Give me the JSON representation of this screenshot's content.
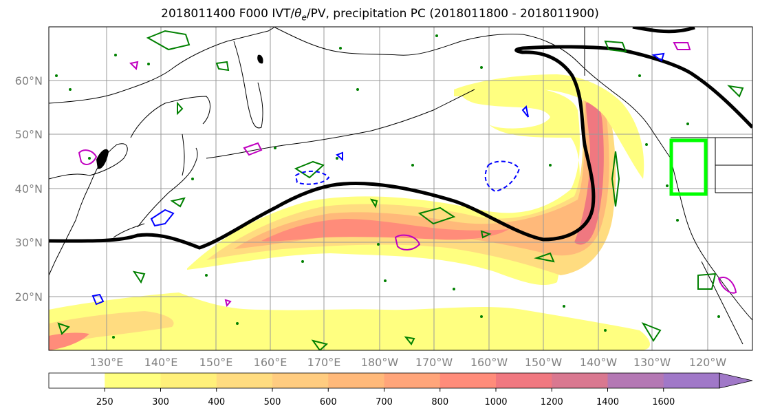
{
  "title": {
    "prefix": "2018011400 F000 IVT/",
    "theta_symbol": "θ",
    "theta_sub": "e",
    "suffix": "/PV, precipitation PC (2018011800 - 2018011900)"
  },
  "axes": {
    "lat_labels": [
      "20°N",
      "30°N",
      "40°N",
      "50°N",
      "60°N"
    ],
    "lon_labels": [
      "130°E",
      "140°E",
      "150°E",
      "160°E",
      "170°E",
      "180°W",
      "170°W",
      "160°W",
      "150°W",
      "140°W",
      "130°W",
      "120°W"
    ]
  },
  "colorbar": {
    "levels": [
      "250",
      "300",
      "400",
      "500",
      "600",
      "700",
      "800",
      "1000",
      "1200",
      "1400",
      "1600"
    ],
    "colors": [
      "#ffffff",
      "#ffff80",
      "#fff07a",
      "#ffdc80",
      "#ffcc80",
      "#ffb97a",
      "#ffa57a",
      "#ff8c7a",
      "#f07880",
      "#d97890",
      "#b478b4",
      "#a078c8"
    ]
  },
  "colors": {
    "ivt_contour": "#e05050",
    "pv_contour": "#000000",
    "green_contour": "#008000",
    "blue_contour": "#0000ff",
    "magenta_contour": "#c000c0",
    "target_box": "#00ff00",
    "coastline": "#000000",
    "gridline": "#999999"
  }
}
